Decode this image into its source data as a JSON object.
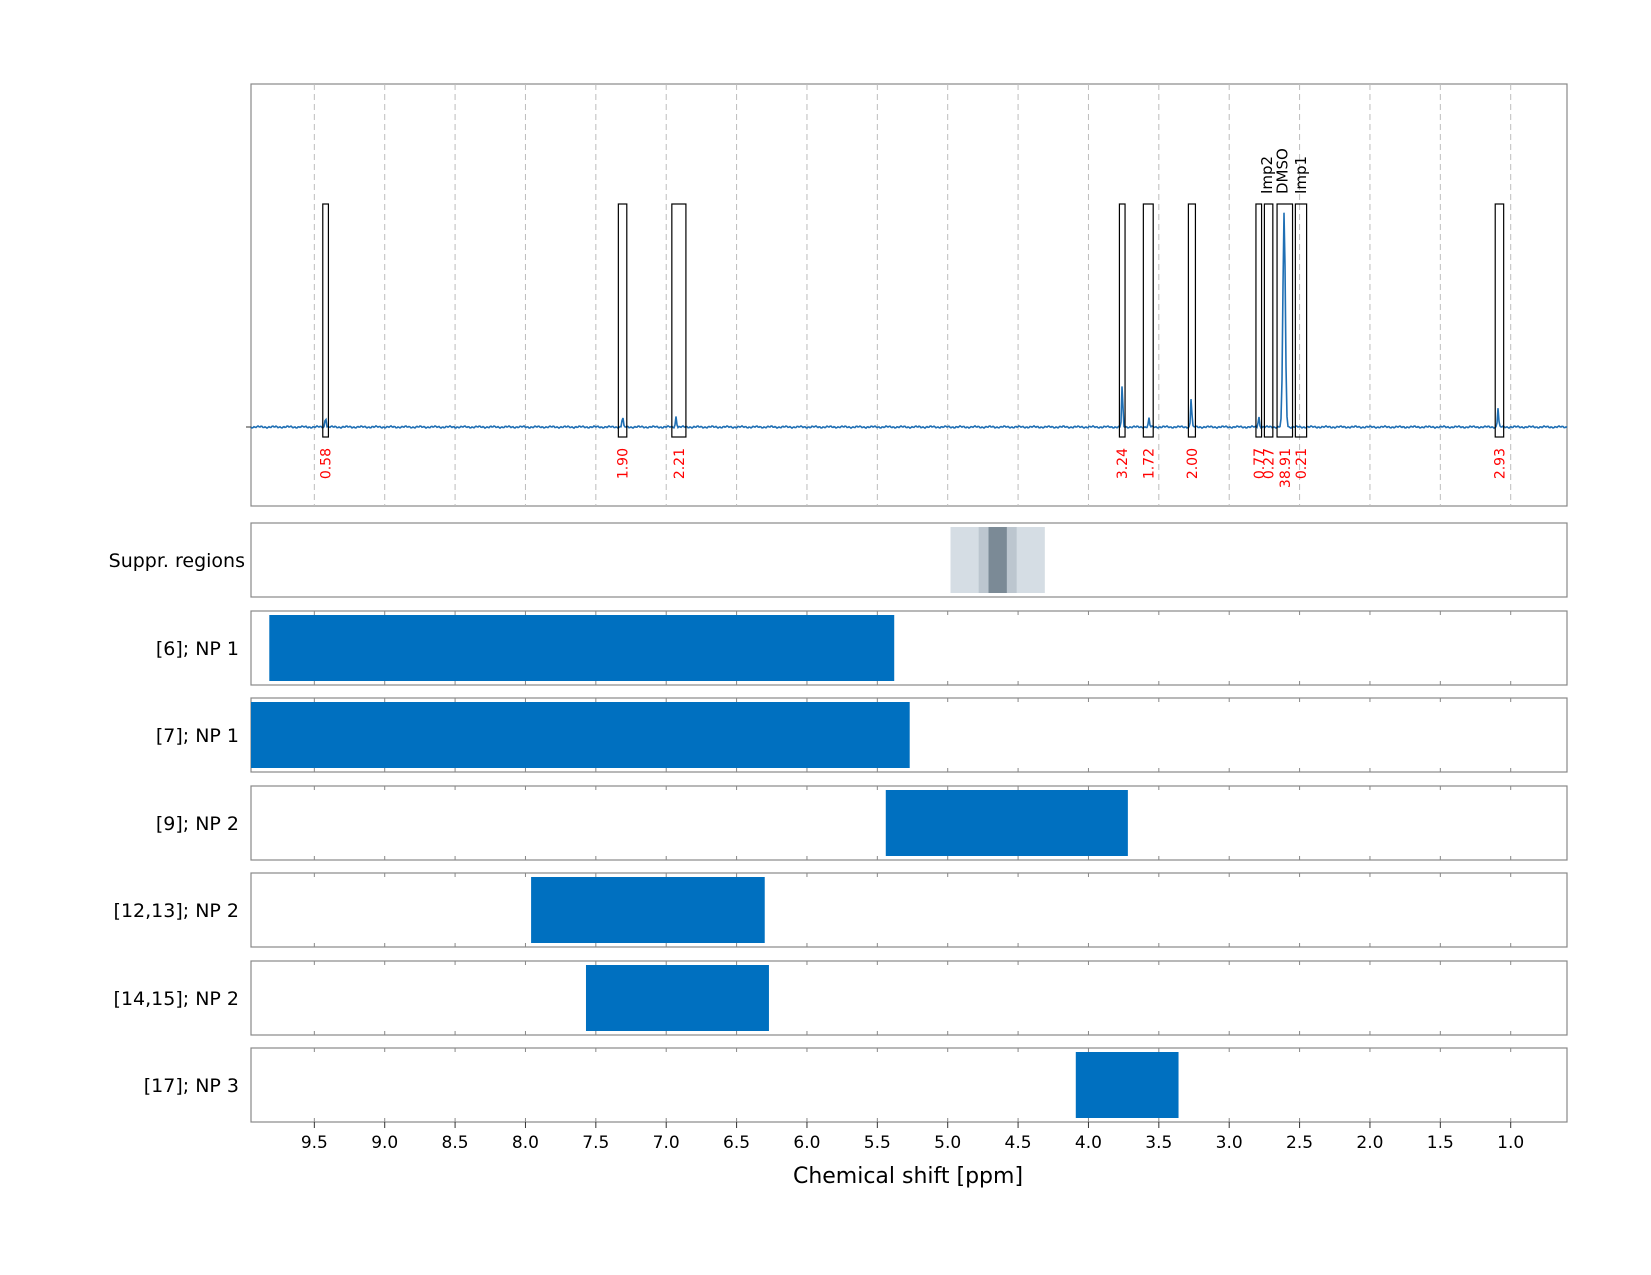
{
  "chart_data": {
    "type": "spectrum",
    "xlabel": "Chemical shift [ppm]",
    "xlim": [
      9.95,
      0.6
    ],
    "xticks": [
      9.5,
      9.0,
      8.5,
      8.0,
      7.5,
      7.0,
      6.5,
      6.0,
      5.5,
      5.0,
      4.5,
      4.0,
      3.5,
      3.0,
      2.5,
      2.0,
      1.5,
      1.0
    ],
    "xtick_labels": [
      "9.5",
      "9.0",
      "8.5",
      "8.0",
      "7.5",
      "7.0",
      "6.5",
      "6.0",
      "5.5",
      "5.0",
      "4.5",
      "4.0",
      "3.5",
      "3.0",
      "2.5",
      "2.0",
      "1.5",
      "1.0"
    ],
    "grid": "vertical dashed",
    "colors": {
      "spectrum": "#1f6fb4",
      "bar": "#0070c0",
      "integral_label": "#ff0000",
      "suppression_light": "#d5dde4",
      "suppression_mid": "#bcc6cf",
      "suppression_dark": "#7b8a96"
    },
    "spectrum_peaks": [
      {
        "ppm": 9.42,
        "height": 0.05
      },
      {
        "ppm": 7.31,
        "height": 0.05
      },
      {
        "ppm": 6.93,
        "height": 0.05
      },
      {
        "ppm": 3.76,
        "height": 0.2
      },
      {
        "ppm": 3.57,
        "height": 0.04
      },
      {
        "ppm": 3.27,
        "height": 0.14
      },
      {
        "ppm": 2.79,
        "height": 0.05
      },
      {
        "ppm": 2.61,
        "height": 1.0
      },
      {
        "ppm": 1.09,
        "height": 0.09
      }
    ],
    "integral_regions": [
      {
        "from": 9.44,
        "to": 9.4,
        "label": "0.58"
      },
      {
        "from": 7.34,
        "to": 7.28,
        "label": "1.90"
      },
      {
        "from": 6.96,
        "to": 6.86,
        "label": "2.21"
      },
      {
        "from": 3.78,
        "to": 3.74,
        "label": "3.24"
      },
      {
        "from": 3.61,
        "to": 3.54,
        "label": "1.72"
      },
      {
        "from": 3.29,
        "to": 3.24,
        "label": "2.00"
      },
      {
        "from": 2.81,
        "to": 2.77,
        "label": "0.77"
      },
      {
        "from": 2.75,
        "to": 2.69,
        "label": "0.27"
      },
      {
        "from": 2.66,
        "to": 2.55,
        "label": "38.91"
      },
      {
        "from": 2.53,
        "to": 2.45,
        "label": "0.21"
      },
      {
        "from": 1.11,
        "to": 1.05,
        "label": "2.93"
      }
    ],
    "annotations": [
      {
        "ppm": 2.73,
        "label": "Imp2"
      },
      {
        "ppm": 2.62,
        "label": "DMSO"
      },
      {
        "ppm": 2.49,
        "label": "Imp1"
      }
    ],
    "suppression": {
      "label": "Suppr. regions",
      "regions": [
        {
          "from": 4.98,
          "to": 4.31,
          "level": "light"
        },
        {
          "from": 4.78,
          "to": 4.51,
          "level": "mid"
        },
        {
          "from": 4.71,
          "to": 4.58,
          "level": "dark"
        }
      ]
    },
    "rows": [
      {
        "label": "[6]; NP 1",
        "from": 9.82,
        "to": 5.38
      },
      {
        "label": "[7]; NP 1",
        "from": 9.95,
        "to": 5.27
      },
      {
        "label": "[9]; NP 2",
        "from": 5.44,
        "to": 3.72
      },
      {
        "label": "[12,13]; NP 2",
        "from": 7.96,
        "to": 6.3
      },
      {
        "label": "[14,15]; NP 2",
        "from": 7.57,
        "to": 6.27
      },
      {
        "label": "[17]; NP 3",
        "from": 4.09,
        "to": 3.36
      }
    ]
  }
}
